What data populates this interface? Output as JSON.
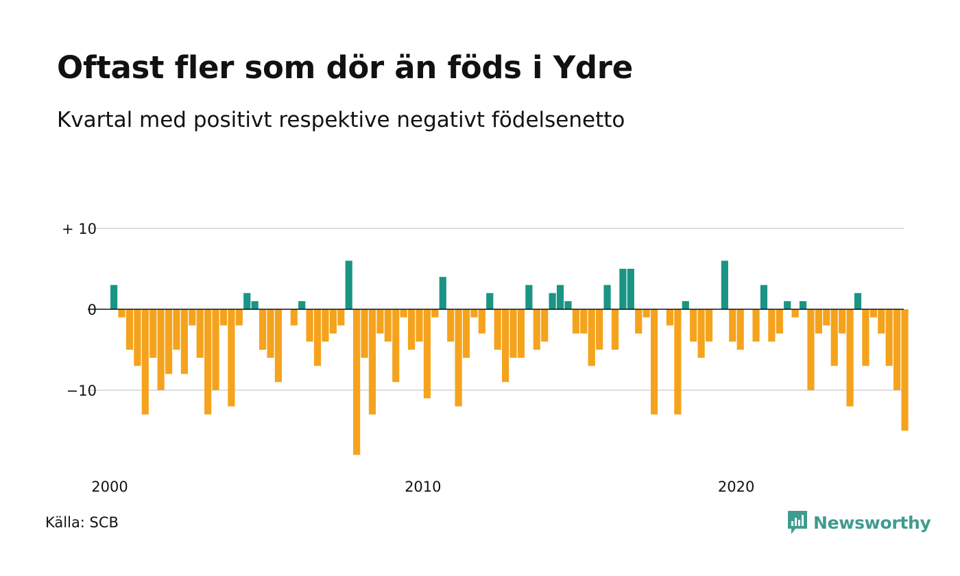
{
  "header": {
    "title": "Oftast fler som dör än föds i Ydre",
    "subtitle": "Kvartal med positivt respektive negativt födelsenetto"
  },
  "footer": {
    "source": "Källa: SCB",
    "brand": "Newsworthy"
  },
  "colors": {
    "positive": "#1a9485",
    "negative": "#f5a31d",
    "grid": "#dddddd",
    "zero_line": "#111111"
  },
  "icons": {
    "brand": "newsworthy-logo-icon"
  },
  "chart_data": {
    "type": "bar",
    "title": "Oftast fler som dör än föds i Ydre",
    "subtitle": "Kvartal med positivt respektive negativt födelsenetto",
    "xlabel": "",
    "ylabel": "",
    "ylim": [
      -18,
      10
    ],
    "y_ticks": [
      {
        "value": 10,
        "label": "+ 10"
      },
      {
        "value": 0,
        "label": "0"
      },
      {
        "value": -10,
        "label": "−10"
      }
    ],
    "x_ticks": [
      {
        "value": 2000,
        "label": "2000"
      },
      {
        "value": 2010,
        "label": "2010"
      },
      {
        "value": 2020,
        "label": "2020"
      }
    ],
    "x_start": "2000 Q1",
    "grid": true,
    "legend": "none",
    "values": [
      3,
      -1,
      -5,
      -7,
      -13,
      -6,
      -10,
      -8,
      -5,
      -8,
      -2,
      -6,
      -13,
      -10,
      -2,
      -12,
      -2,
      2,
      1,
      -5,
      -6,
      -9,
      0,
      -2,
      1,
      -4,
      -7,
      -4,
      -3,
      -2,
      6,
      -18,
      -6,
      -13,
      -3,
      -4,
      -9,
      -1,
      -5,
      -4,
      -11,
      -1,
      4,
      -4,
      -12,
      -6,
      -1,
      -3,
      2,
      -5,
      -9,
      -6,
      -6,
      3,
      -5,
      -4,
      2,
      3,
      1,
      -3,
      -3,
      -7,
      -5,
      3,
      -5,
      5,
      5,
      -3,
      -1,
      -13,
      0,
      -2,
      -13,
      1,
      -4,
      -6,
      -4,
      0,
      6,
      -4,
      -5,
      0,
      -4,
      3,
      -4,
      -3,
      1,
      -1,
      1,
      -10,
      -3,
      -2,
      -7,
      -3,
      -12,
      2,
      -7,
      -1,
      -3,
      -7,
      -10,
      -15
    ]
  }
}
